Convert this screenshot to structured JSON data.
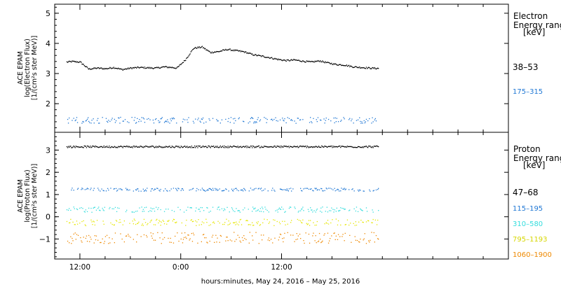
{
  "chart_data": [
    {
      "type": "scatter",
      "panel": "electron",
      "ylabel_lines": [
        "ACE EPAM",
        "log(Electron Flux)",
        "[1/(cm²s ster MeV)]"
      ],
      "legend_title_lines": [
        "Electron",
        "Energy ranges"
      ],
      "legend_unit": "[keV]",
      "ylim": [
        1.05,
        5.3
      ],
      "yticks": [
        "2",
        "3",
        "4",
        "5"
      ],
      "ytick_values": [
        2,
        3,
        4,
        5
      ],
      "series": [
        {
          "name": "38–53",
          "color": "#000000",
          "points_hours": [
            -1.5,
            -1,
            0,
            1,
            2,
            3,
            4,
            5,
            6,
            7,
            8,
            9,
            10,
            11,
            11.5,
            12.5,
            13.5,
            14.5,
            15.5,
            16.5,
            17.5,
            18.5,
            19.5,
            20.5,
            21.5,
            22.5,
            23.5,
            24.5,
            25.5,
            26.5,
            27.5,
            28.5,
            29.5,
            30.5,
            31.5,
            32.5,
            33.5,
            34.5,
            35.5
          ],
          "values": [
            3.38,
            3.4,
            3.38,
            3.15,
            3.18,
            3.16,
            3.2,
            3.13,
            3.18,
            3.2,
            3.19,
            3.18,
            3.22,
            3.2,
            3.18,
            3.45,
            3.84,
            3.88,
            3.7,
            3.73,
            3.8,
            3.76,
            3.72,
            3.63,
            3.58,
            3.53,
            3.47,
            3.43,
            3.45,
            3.41,
            3.38,
            3.42,
            3.35,
            3.3,
            3.28,
            3.22,
            3.2,
            3.18,
            3.17
          ]
        },
        {
          "name": "175–315",
          "color": "#1f77d4",
          "level": 1.45,
          "scatter": 0.1
        }
      ]
    },
    {
      "type": "scatter",
      "panel": "proton",
      "ylabel_lines": [
        "ACE EPAM",
        "log(Proton Flux)",
        "[1/(cm²s ster MeV)]"
      ],
      "legend_title_lines": [
        "Proton",
        "Energy ranges"
      ],
      "legend_unit": "[keV]",
      "ylim": [
        -1.9,
        3.8
      ],
      "yticks": [
        "−1",
        "0",
        "1",
        "2",
        "3"
      ],
      "ytick_values": [
        -1,
        0,
        1,
        2,
        3
      ],
      "series": [
        {
          "name": "47–68",
          "color": "#000000",
          "level": 3.15,
          "scatter": 0.04
        },
        {
          "name": "115–195",
          "color": "#1f77d4",
          "level": 1.22,
          "scatter": 0.07
        },
        {
          "name": "310–580",
          "color": "#33dddd",
          "level": 0.32,
          "scatter": 0.12
        },
        {
          "name": "795–1193",
          "color": "#e6e600",
          "level": -0.25,
          "scatter": 0.15
        },
        {
          "name": "1060–1900",
          "color": "#ee8800",
          "level": -0.95,
          "scatter": 0.25
        }
      ]
    }
  ],
  "xaxis": {
    "title": "hours:minutes, May 24, 2016 – May 25, 2016",
    "xlim_hours": [
      -3,
      51
    ],
    "ticks": [
      {
        "label": "12:00",
        "hours": 0
      },
      {
        "label": "0:00",
        "hours": 12
      },
      {
        "label": "12:00",
        "hours": 24
      }
    ],
    "minor_tick_step_hours": 3,
    "data_end_hours": 35.5
  }
}
